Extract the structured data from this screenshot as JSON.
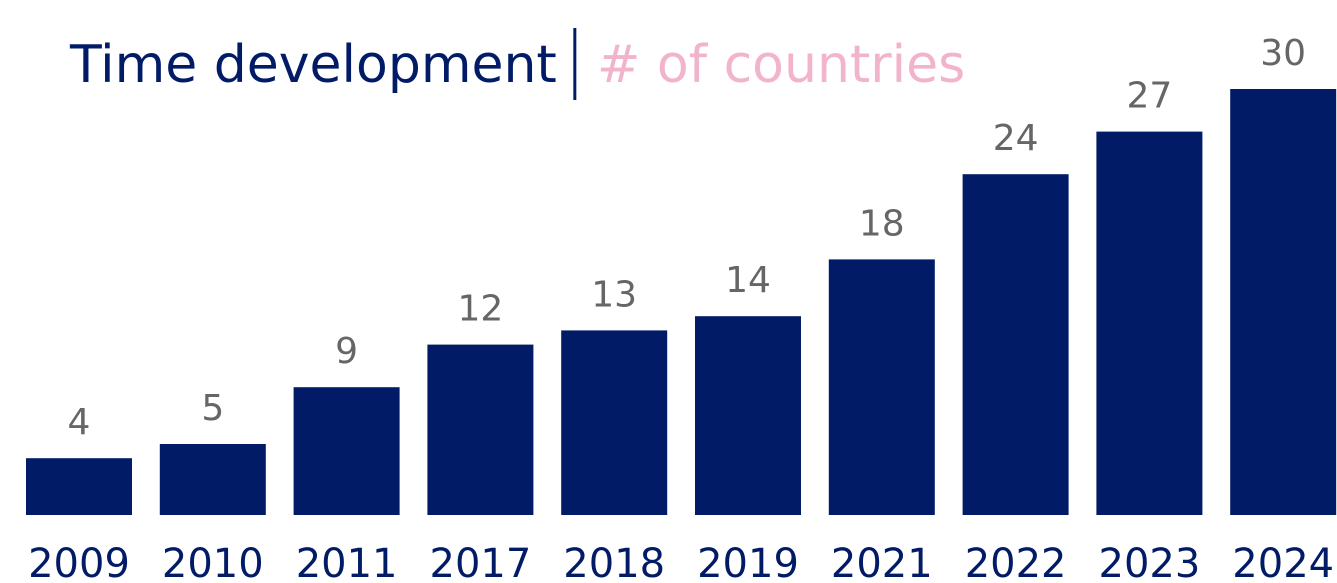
{
  "chart_data": {
    "type": "bar",
    "title": "Time development",
    "subtitle": "# of countries",
    "title_color": "#021b66",
    "subtitle_color": "#f2b3cc",
    "categories": [
      "2009",
      "2010",
      "2011",
      "2017",
      "2018",
      "2019",
      "2021",
      "2022",
      "2023",
      "2024"
    ],
    "values": [
      4,
      5,
      9,
      12,
      13,
      14,
      18,
      24,
      27,
      30
    ],
    "color": "#021b66",
    "label_color": "#666666",
    "grid": false
  }
}
